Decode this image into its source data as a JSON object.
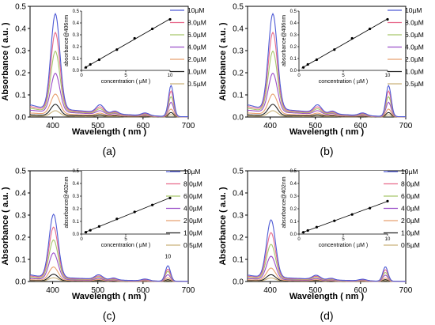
{
  "legend_labels": [
    "10µM",
    "8.0µM",
    "6.0µM",
    "4.0µM",
    "2.0µM",
    "1.0µM",
    "0.5µM"
  ],
  "series_colors": [
    "#4f5bd5",
    "#e86a8c",
    "#a8c66c",
    "#9b4fc9",
    "#e8a070",
    "#222222",
    "#c9b27a"
  ],
  "chart_data": [
    {
      "panel": "(a)",
      "type": "line",
      "xlabel": "Wavelength ( nm )",
      "ylabel": "Absorbance ( a.u. )",
      "xlim": [
        350,
        700
      ],
      "ylim": [
        0,
        0.5
      ],
      "xticks": [
        400,
        500,
        600,
        700
      ],
      "yticks": [
        0.0,
        0.1,
        0.2,
        0.3,
        0.4,
        0.5
      ],
      "peaks": [
        406,
        505,
        538,
        605,
        662
      ],
      "series": [
        {
          "name": "10µM",
          "peak_heights": [
            0.43,
            0.035,
            0.012,
            0.012,
            0.14
          ],
          "baseline": 0.04
        },
        {
          "name": "8.0µM",
          "peak_heights": [
            0.35,
            0.028,
            0.01,
            0.01,
            0.115
          ],
          "baseline": 0.035
        },
        {
          "name": "6.0µM",
          "peak_heights": [
            0.27,
            0.022,
            0.008,
            0.008,
            0.09
          ],
          "baseline": 0.03
        },
        {
          "name": "4.0µM",
          "peak_heights": [
            0.175,
            0.016,
            0.006,
            0.006,
            0.065
          ],
          "baseline": 0.025
        },
        {
          "name": "2.0µM",
          "peak_heights": [
            0.09,
            0.01,
            0.004,
            0.004,
            0.035
          ],
          "baseline": 0.015
        },
        {
          "name": "1.0µM",
          "peak_heights": [
            0.05,
            0.006,
            0.002,
            0.002,
            0.02
          ],
          "baseline": 0.008
        },
        {
          "name": "0.5µM",
          "peak_heights": [
            0.025,
            0.004,
            0.001,
            0.001,
            0.01
          ],
          "baseline": 0.004
        }
      ],
      "inset": {
        "xlabel": "concentration ( µM )",
        "ylabel": "absorbance@406nm",
        "xlim": [
          0,
          10
        ],
        "ylim": [
          0,
          0.5
        ],
        "xticks": [
          0,
          5,
          10
        ],
        "yticks": [
          0.0,
          0.1,
          0.2,
          0.3,
          0.4,
          0.5
        ],
        "x": [
          0.5,
          1,
          2,
          4,
          6,
          8,
          10
        ],
        "y": [
          0.025,
          0.05,
          0.09,
          0.175,
          0.27,
          0.35,
          0.43
        ]
      }
    },
    {
      "panel": "(b)",
      "type": "line",
      "xlabel": "Wavelength ( nm )",
      "ylabel": "Absorbance ( a.u. )",
      "xlim": [
        350,
        700
      ],
      "ylim": [
        0,
        0.5
      ],
      "xticks": [
        400,
        500,
        600,
        700
      ],
      "yticks": [
        0.0,
        0.1,
        0.2,
        0.3,
        0.4,
        0.5
      ],
      "peaks": [
        406,
        505,
        538,
        605,
        662
      ],
      "series": [
        {
          "name": "10µM",
          "peak_heights": [
            0.43,
            0.035,
            0.012,
            0.012,
            0.14
          ],
          "baseline": 0.04
        },
        {
          "name": "8.0µM",
          "peak_heights": [
            0.35,
            0.028,
            0.01,
            0.01,
            0.115
          ],
          "baseline": 0.035
        },
        {
          "name": "6.0µM",
          "peak_heights": [
            0.27,
            0.022,
            0.008,
            0.008,
            0.09
          ],
          "baseline": 0.03
        },
        {
          "name": "4.0µM",
          "peak_heights": [
            0.175,
            0.016,
            0.006,
            0.006,
            0.065
          ],
          "baseline": 0.025
        },
        {
          "name": "2.0µM",
          "peak_heights": [
            0.09,
            0.01,
            0.004,
            0.004,
            0.035
          ],
          "baseline": 0.015
        },
        {
          "name": "1.0µM",
          "peak_heights": [
            0.05,
            0.006,
            0.002,
            0.002,
            0.02
          ],
          "baseline": 0.008
        },
        {
          "name": "0.5µM",
          "peak_heights": [
            0.025,
            0.004,
            0.001,
            0.001,
            0.01
          ],
          "baseline": 0.004
        }
      ],
      "inset": {
        "xlabel": "concentration ( µM )",
        "ylabel": "absorbance@406nm",
        "xlim": [
          0,
          10
        ],
        "ylim": [
          0,
          0.5
        ],
        "xticks": [
          0,
          5,
          10
        ],
        "yticks": [
          0.0,
          0.1,
          0.2,
          0.3,
          0.4,
          0.5
        ],
        "x": [
          0.5,
          1,
          2,
          4,
          6,
          8,
          10
        ],
        "y": [
          0.025,
          0.05,
          0.09,
          0.175,
          0.27,
          0.35,
          0.43
        ]
      }
    },
    {
      "panel": "(c)",
      "type": "line",
      "xlabel": "Wavelength ( nm )",
      "ylabel": "Absorbance ( a.u. )",
      "xlim": [
        350,
        700
      ],
      "ylim": [
        0,
        0.5
      ],
      "xticks": [
        400,
        500,
        600,
        700
      ],
      "yticks": [
        0.0,
        0.1,
        0.2,
        0.3,
        0.4,
        0.5
      ],
      "peaks": [
        402,
        502,
        535,
        605,
        655
      ],
      "annotation": "10",
      "series": [
        {
          "name": "10µM",
          "peak_heights": [
            0.285,
            0.02,
            0.008,
            0.008,
            0.07
          ],
          "baseline": 0.02
        },
        {
          "name": "8.0µM",
          "peak_heights": [
            0.23,
            0.016,
            0.006,
            0.006,
            0.055
          ],
          "baseline": 0.017
        },
        {
          "name": "6.0µM",
          "peak_heights": [
            0.175,
            0.013,
            0.005,
            0.005,
            0.045
          ],
          "baseline": 0.014
        },
        {
          "name": "4.0µM",
          "peak_heights": [
            0.12,
            0.009,
            0.004,
            0.004,
            0.03
          ],
          "baseline": 0.01
        },
        {
          "name": "2.0µM",
          "peak_heights": [
            0.06,
            0.006,
            0.002,
            0.002,
            0.016
          ],
          "baseline": 0.006
        },
        {
          "name": "1.0µM",
          "peak_heights": [
            0.03,
            0.003,
            0.001,
            0.001,
            0.008
          ],
          "baseline": 0.003
        },
        {
          "name": "0.5µM",
          "peak_heights": [
            0.015,
            0.002,
            0.001,
            0.001,
            0.004
          ],
          "baseline": 0.002
        }
      ],
      "inset": {
        "xlabel": "concentration ( µM )",
        "ylabel": "absorbance@402nm",
        "xlim": [
          0,
          10
        ],
        "ylim": [
          0,
          0.5
        ],
        "xticks": [
          0,
          5
        ],
        "yticks": [
          0.0,
          0.1,
          0.2,
          0.3,
          0.4,
          0.5
        ],
        "x": [
          0.5,
          1,
          2,
          4,
          6,
          8,
          10
        ],
        "y": [
          0.015,
          0.03,
          0.06,
          0.12,
          0.175,
          0.23,
          0.285
        ]
      }
    },
    {
      "panel": "(d)",
      "type": "line",
      "xlabel": "Wavelength ( nm )",
      "ylabel": "Absorbance ( a.u. )",
      "xlim": [
        350,
        700
      ],
      "ylim": [
        0,
        0.5
      ],
      "xticks": [
        400,
        500,
        600,
        700
      ],
      "yticks": [
        0.0,
        0.1,
        0.2,
        0.3,
        0.4,
        0.5
      ],
      "peaks": [
        402,
        502,
        535,
        605,
        655
      ],
      "series": [
        {
          "name": "10µM",
          "peak_heights": [
            0.26,
            0.018,
            0.007,
            0.007,
            0.065
          ],
          "baseline": 0.02
        },
        {
          "name": "8.0µM",
          "peak_heights": [
            0.205,
            0.015,
            0.006,
            0.006,
            0.052
          ],
          "baseline": 0.017
        },
        {
          "name": "6.0µM",
          "peak_heights": [
            0.155,
            0.012,
            0.005,
            0.005,
            0.04
          ],
          "baseline": 0.014
        },
        {
          "name": "4.0µM",
          "peak_heights": [
            0.105,
            0.008,
            0.004,
            0.004,
            0.028
          ],
          "baseline": 0.01
        },
        {
          "name": "2.0µM",
          "peak_heights": [
            0.055,
            0.005,
            0.002,
            0.002,
            0.015
          ],
          "baseline": 0.006
        },
        {
          "name": "1.0µM",
          "peak_heights": [
            0.028,
            0.003,
            0.001,
            0.001,
            0.008
          ],
          "baseline": 0.003
        },
        {
          "name": "0.5µM",
          "peak_heights": [
            0.014,
            0.002,
            0.001,
            0.001,
            0.004
          ],
          "baseline": 0.002
        }
      ],
      "inset": {
        "xlabel": "concentration ( µM )",
        "ylabel": "absorbance@402nm",
        "xlim": [
          0,
          10
        ],
        "ylim": [
          0,
          0.5
        ],
        "xticks": [
          0,
          5,
          10
        ],
        "yticks": [
          0.0,
          0.1,
          0.2,
          0.3,
          0.4,
          0.5
        ],
        "x": [
          0.5,
          1,
          2,
          4,
          6,
          8,
          10
        ],
        "y": [
          0.014,
          0.028,
          0.055,
          0.105,
          0.155,
          0.205,
          0.26
        ]
      }
    }
  ]
}
